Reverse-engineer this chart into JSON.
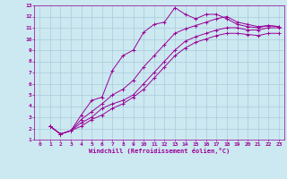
{
  "xlabel": "Windchill (Refroidissement éolien,°C)",
  "bg_color": "#cce8f0",
  "grid_color": "#aaccdd",
  "line_color": "#990099",
  "xlim": [
    -0.5,
    23.5
  ],
  "ylim": [
    1,
    13
  ],
  "xticks": [
    0,
    1,
    2,
    3,
    4,
    5,
    6,
    7,
    8,
    9,
    10,
    11,
    12,
    13,
    14,
    15,
    16,
    17,
    18,
    19,
    20,
    21,
    22,
    23
  ],
  "yticks": [
    1,
    2,
    3,
    4,
    5,
    6,
    7,
    8,
    9,
    10,
    11,
    12,
    13
  ],
  "lines": [
    {
      "x": [
        1,
        2,
        3,
        4,
        5,
        6,
        7,
        8,
        9,
        10,
        11,
        12,
        13,
        14,
        15,
        16,
        17,
        18,
        19,
        20,
        21,
        22,
        23
      ],
      "y": [
        2.2,
        1.5,
        1.8,
        3.2,
        4.5,
        4.8,
        7.2,
        8.5,
        9.0,
        10.6,
        11.3,
        11.5,
        12.8,
        12.2,
        11.8,
        12.2,
        12.2,
        11.8,
        11.3,
        11.1,
        11.0,
        11.2,
        11.1
      ]
    },
    {
      "x": [
        1,
        2,
        3,
        4,
        5,
        6,
        7,
        8,
        9,
        10,
        11,
        12,
        13,
        14,
        15,
        16,
        17,
        18,
        19,
        20,
        21,
        22,
        23
      ],
      "y": [
        2.2,
        1.5,
        1.8,
        2.8,
        3.5,
        4.2,
        5.0,
        5.5,
        6.3,
        7.5,
        8.5,
        9.5,
        10.5,
        10.9,
        11.2,
        11.5,
        11.8,
        12.0,
        11.5,
        11.3,
        11.1,
        11.2,
        11.1
      ]
    },
    {
      "x": [
        1,
        2,
        3,
        4,
        5,
        6,
        7,
        8,
        9,
        10,
        11,
        12,
        13,
        14,
        15,
        16,
        17,
        18,
        19,
        20,
        21,
        22,
        23
      ],
      "y": [
        2.2,
        1.5,
        1.8,
        2.5,
        3.0,
        3.8,
        4.2,
        4.5,
        5.0,
        6.0,
        7.0,
        8.0,
        9.0,
        9.8,
        10.2,
        10.5,
        10.8,
        11.0,
        11.0,
        10.8,
        10.8,
        11.0,
        11.0
      ]
    },
    {
      "x": [
        1,
        2,
        3,
        4,
        5,
        6,
        7,
        8,
        9,
        10,
        11,
        12,
        13,
        14,
        15,
        16,
        17,
        18,
        19,
        20,
        21,
        22,
        23
      ],
      "y": [
        2.2,
        1.5,
        1.8,
        2.2,
        2.8,
        3.2,
        3.8,
        4.2,
        4.8,
        5.5,
        6.5,
        7.5,
        8.5,
        9.2,
        9.7,
        10.0,
        10.3,
        10.5,
        10.5,
        10.4,
        10.3,
        10.5,
        10.5
      ]
    }
  ]
}
